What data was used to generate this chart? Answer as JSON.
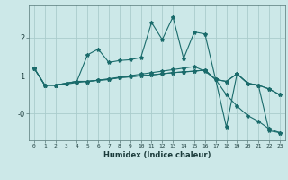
{
  "xlabel": "Humidex (Indice chaleur)",
  "background_color": "#cce8e8",
  "grid_color": "#aacccc",
  "line_color": "#1a6b6b",
  "xlim": [
    -0.5,
    23.5
  ],
  "ylim": [
    -0.7,
    2.85
  ],
  "xticks": [
    0,
    1,
    2,
    3,
    4,
    5,
    6,
    7,
    8,
    9,
    10,
    11,
    12,
    13,
    14,
    15,
    16,
    17,
    18,
    19,
    20,
    21,
    22,
    23
  ],
  "yticks": [
    0.0,
    1.0,
    2.0
  ],
  "ytick_labels": [
    "-0",
    "1",
    "2"
  ],
  "series": [
    [
      1.2,
      0.75,
      0.75,
      0.8,
      0.85,
      1.55,
      1.7,
      1.35,
      1.4,
      1.42,
      1.48,
      2.4,
      1.95,
      2.55,
      1.45,
      2.15,
      2.1,
      0.9,
      -0.35,
      1.05,
      0.8,
      0.75,
      -0.45,
      -0.5
    ],
    [
      1.2,
      0.75,
      0.75,
      0.8,
      0.85,
      0.85,
      0.88,
      0.9,
      0.95,
      0.97,
      1.0,
      1.02,
      1.05,
      1.08,
      1.1,
      1.12,
      1.15,
      0.9,
      0.85,
      1.05,
      0.8,
      0.75,
      0.65,
      0.5
    ],
    [
      1.2,
      0.75,
      0.75,
      0.8,
      0.85,
      0.85,
      0.88,
      0.9,
      0.95,
      0.97,
      1.0,
      1.02,
      1.05,
      1.08,
      1.1,
      1.12,
      1.15,
      0.9,
      0.85,
      1.05,
      0.8,
      0.75,
      0.65,
      0.5
    ],
    [
      1.2,
      0.75,
      0.75,
      0.78,
      0.82,
      0.85,
      0.88,
      0.92,
      0.96,
      1.0,
      1.04,
      1.08,
      1.12,
      1.16,
      1.2,
      1.24,
      1.12,
      0.9,
      0.5,
      0.2,
      -0.05,
      -0.2,
      -0.4,
      -0.5
    ]
  ]
}
